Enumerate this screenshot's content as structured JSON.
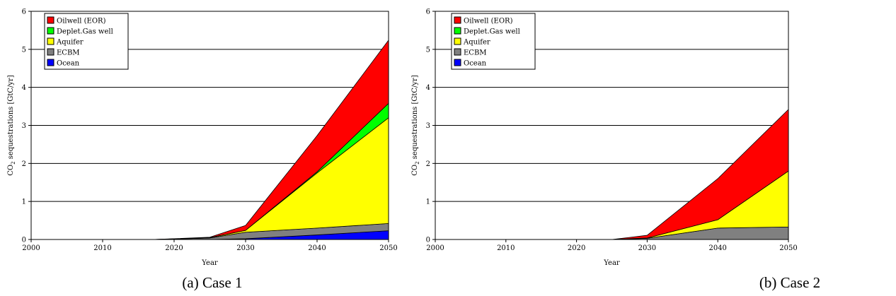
{
  "chart_data": [
    {
      "type": "area",
      "stacked": true,
      "caption": "(a) Case 1",
      "xlabel": "Year",
      "ylabel": "CO2 sequestrations [GtC/yr]",
      "ylabel_main": "CO",
      "ylabel_sub": "2",
      "ylabel_rest": " sequestrations [GtC/yr]",
      "xlim": [
        2000,
        2050
      ],
      "ylim": [
        0,
        6
      ],
      "x_ticks": [
        "2000",
        "2010",
        "2020",
        "2030",
        "2040",
        "2050"
      ],
      "y_ticks": [
        "0",
        "1",
        "2",
        "3",
        "4",
        "5",
        "6"
      ],
      "gridlines": "horizontal",
      "legend_position": "top-left",
      "x": [
        2000,
        2010,
        2015,
        2017,
        2020,
        2025,
        2030,
        2040,
        2050
      ],
      "series": [
        {
          "name": "Ocean",
          "color": "#0000ff",
          "values": [
            0,
            0,
            0,
            0,
            0,
            0,
            0.02,
            0.12,
            0.23
          ]
        },
        {
          "name": "ECBM",
          "color": "#808080",
          "values": [
            0,
            0,
            0,
            0,
            0.01,
            0.04,
            0.17,
            0.18,
            0.19
          ]
        },
        {
          "name": "Aquifer",
          "color": "#ffff00",
          "values": [
            0,
            0,
            0,
            0,
            0.005,
            0.01,
            0.05,
            1.45,
            2.78
          ]
        },
        {
          "name": "Deplet.Gas well",
          "color": "#00ff00",
          "values": [
            0,
            0,
            0,
            0,
            0,
            0,
            0,
            0.03,
            0.38
          ]
        },
        {
          "name": "Oilwell (EOR)",
          "color": "#ff0000",
          "values": [
            0,
            0,
            0,
            0,
            0.005,
            0.01,
            0.13,
            0.95,
            1.66
          ]
        }
      ],
      "legend_order": [
        "Oilwell (EOR)",
        "Deplet.Gas well",
        "Aquifer",
        "ECBM",
        "Ocean"
      ]
    },
    {
      "type": "area",
      "stacked": true,
      "caption": "(b) Case 2",
      "xlabel": "Year",
      "ylabel": "CO2 sequestrations [GtC/yr]",
      "ylabel_main": "CO",
      "ylabel_sub": "2",
      "ylabel_rest": " sequestrations [GtC/yr]",
      "xlim": [
        2000,
        2050
      ],
      "ylim": [
        0,
        6
      ],
      "x_ticks": [
        "2000",
        "2010",
        "2020",
        "2030",
        "2040",
        "2050"
      ],
      "y_ticks": [
        "0",
        "1",
        "2",
        "3",
        "4",
        "5",
        "6"
      ],
      "gridlines": "horizontal",
      "legend_position": "top-left",
      "x": [
        2000,
        2010,
        2020,
        2025,
        2030,
        2040,
        2050
      ],
      "series": [
        {
          "name": "Ocean",
          "color": "#0000ff",
          "values": [
            0,
            0,
            0,
            0,
            0,
            0,
            0
          ]
        },
        {
          "name": "ECBM",
          "color": "#808080",
          "values": [
            0,
            0,
            0,
            0,
            0.03,
            0.3,
            0.33
          ]
        },
        {
          "name": "Aquifer",
          "color": "#ffff00",
          "values": [
            0,
            0,
            0,
            0,
            0.01,
            0.22,
            1.47
          ]
        },
        {
          "name": "Deplet.Gas well",
          "color": "#00ff00",
          "values": [
            0,
            0,
            0,
            0,
            0,
            0,
            0
          ]
        },
        {
          "name": "Oilwell (EOR)",
          "color": "#ff0000",
          "values": [
            0,
            0,
            0,
            0,
            0.07,
            1.08,
            1.62
          ]
        }
      ],
      "legend_order": [
        "Oilwell (EOR)",
        "Deplet.Gas well",
        "Aquifer",
        "ECBM",
        "Ocean"
      ]
    }
  ]
}
